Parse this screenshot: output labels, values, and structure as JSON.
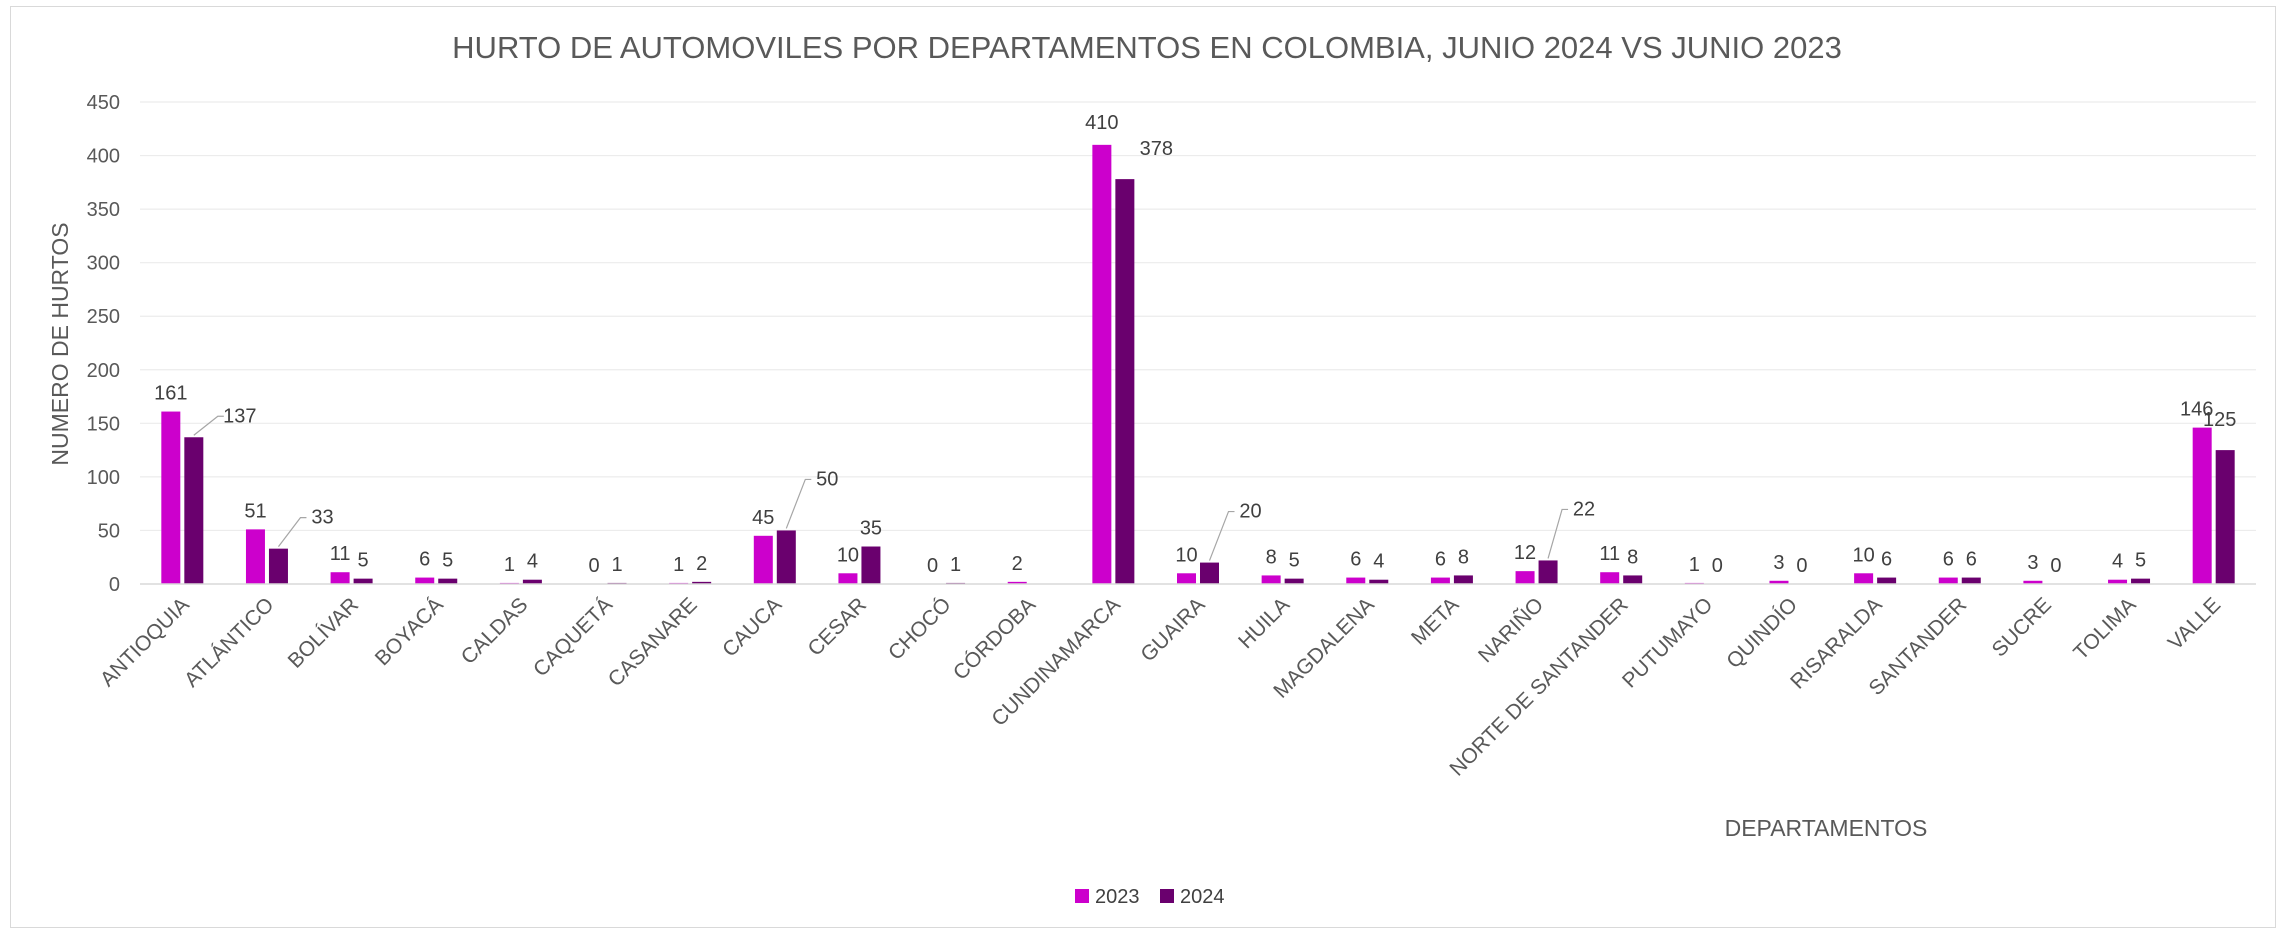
{
  "chart_data": {
    "type": "bar",
    "title": "HURTO DE AUTOMOVILES POR DEPARTAMENTOS EN COLOMBIA, JUNIO 2024 VS JUNIO 2023",
    "xlabel": "DEPARTAMENTOS",
    "ylabel": "NUMERO DE HURTOS",
    "ylim": [
      0,
      450
    ],
    "yticks": [
      0,
      50,
      100,
      150,
      200,
      250,
      300,
      350,
      400,
      450
    ],
    "grid": true,
    "legend_position": "bottom",
    "categories": [
      "ANTIOQUIA",
      "ATLÁNTICO",
      "BOLÍVAR",
      "BOYACÁ",
      "CALDAS",
      "CAQUETÁ",
      "CASANARE",
      "CAUCA",
      "CESAR",
      "CHOCÓ",
      "CÓRDOBA",
      "CUNDINAMARCA",
      "GUAIRA",
      "HUILA",
      "MAGDALENA",
      "META",
      "NARIÑO",
      "NORTE DE SANTANDER",
      "PUTUMAYO",
      "QUINDÍO",
      "RISARALDA",
      "SANTANDER",
      "SUCRE",
      "TOLIMA",
      "VALLE"
    ],
    "series": [
      {
        "name": "2023",
        "color": "#CC00CC",
        "values": [
          161,
          51,
          11,
          6,
          1,
          0,
          1,
          45,
          10,
          0,
          2,
          410,
          10,
          8,
          6,
          6,
          12,
          11,
          1,
          3,
          10,
          6,
          3,
          4,
          146
        ],
        "labels": [
          "161",
          "51",
          "11",
          "6",
          "1",
          "0",
          "1",
          "45",
          "10",
          "0",
          "2",
          "410",
          "10",
          "8",
          "6",
          "6",
          "12",
          "11",
          "1",
          "3",
          "10",
          "6",
          "3",
          "4",
          "146"
        ]
      },
      {
        "name": "2024",
        "color": "#6A006E",
        "values": [
          137,
          33,
          5,
          5,
          4,
          1,
          2,
          50,
          35,
          1,
          0,
          378,
          20,
          5,
          4,
          8,
          22,
          8,
          0,
          0,
          6,
          6,
          0,
          5,
          125
        ],
        "labels": [
          "137",
          "33",
          "5",
          "5",
          "4",
          "1",
          "2",
          "50",
          "35",
          "1",
          "",
          "378",
          "20",
          "5",
          "4",
          "8",
          "22",
          "8",
          "0",
          "0",
          "6",
          "6",
          "0",
          "5",
          "125"
        ]
      }
    ]
  }
}
